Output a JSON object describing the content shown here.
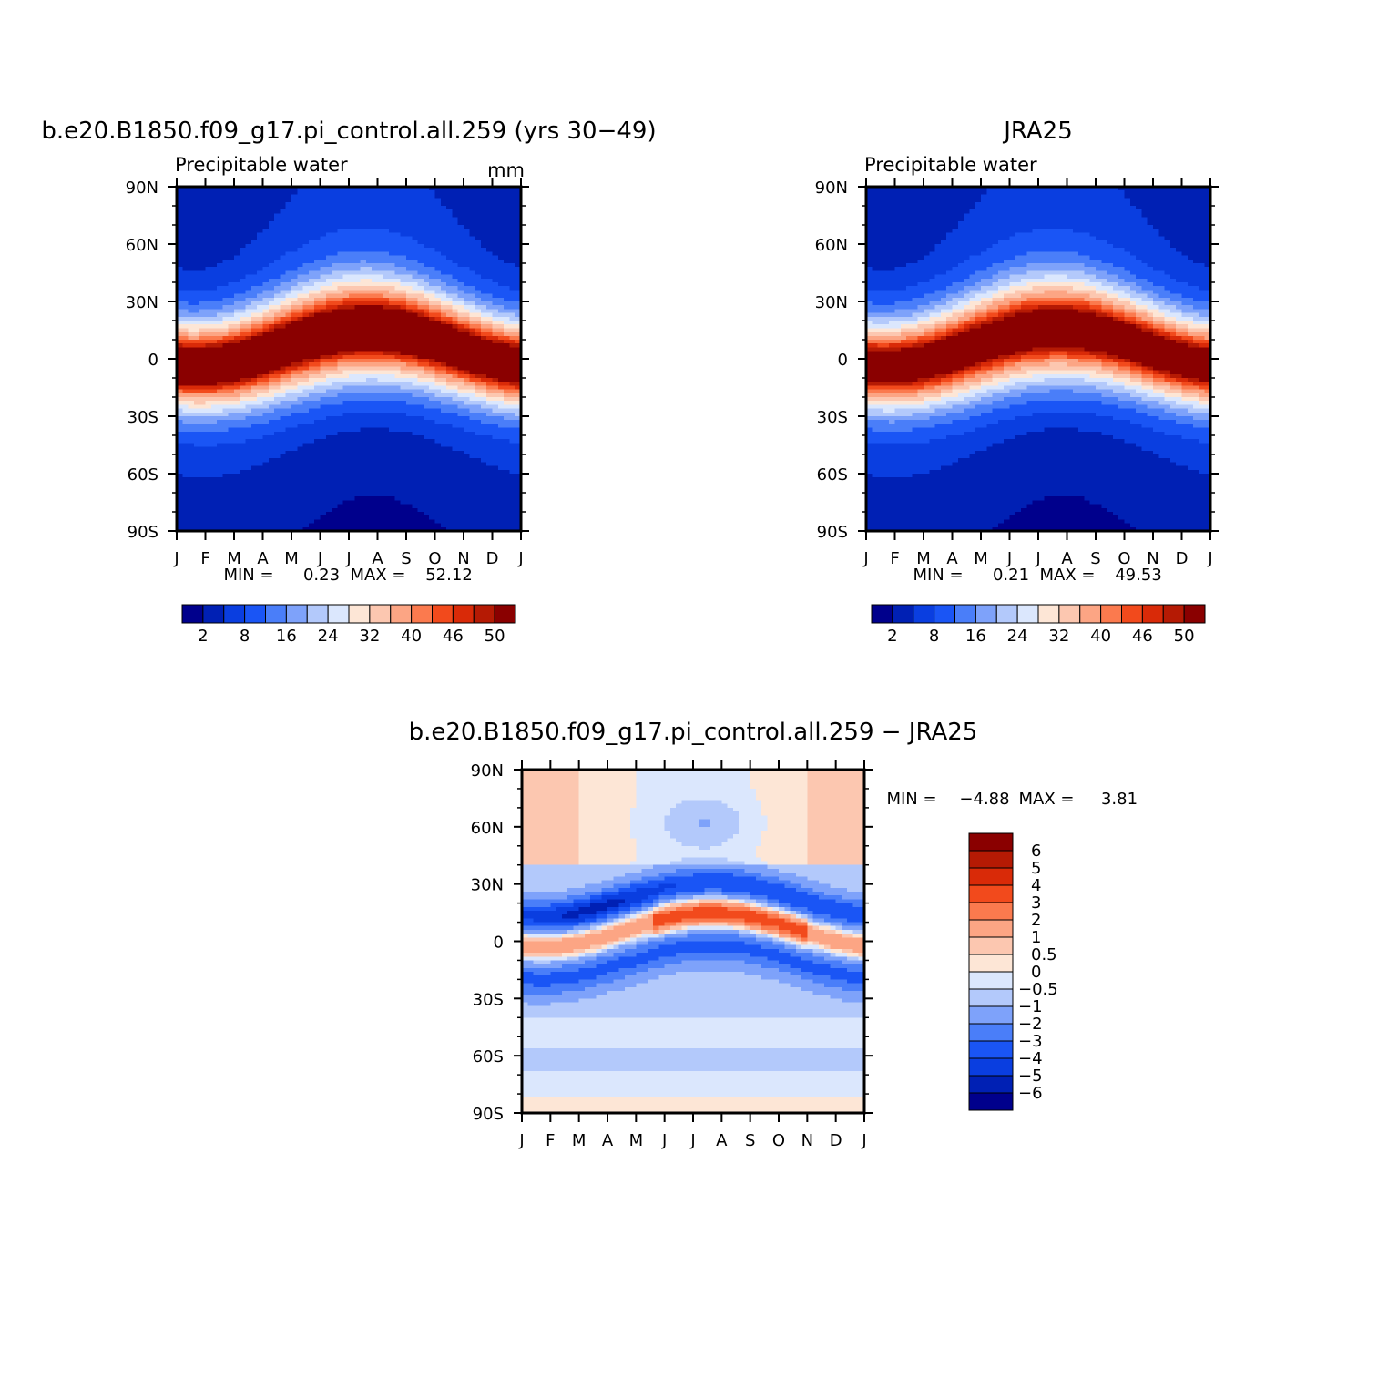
{
  "chart_data": [
    {
      "type": "heatmap",
      "title": "b.e20.B1850.f09_g17.pi_control.all.259 (yrs 30-49)",
      "subtitle": "Precipitable water",
      "units": "mm",
      "x_tick_labels": [
        "J",
        "F",
        "M",
        "A",
        "M",
        "J",
        "J",
        "A",
        "S",
        "O",
        "N",
        "D",
        "J"
      ],
      "y_tick_labels": [
        "90N",
        "60N",
        "30N",
        "0",
        "30S",
        "60S",
        "90S"
      ],
      "y_values": [
        90,
        60,
        30,
        0,
        -30,
        -60,
        -90
      ],
      "stats": {
        "min_label": "MIN =",
        "min": "0.23",
        "max_label": "MAX =",
        "max": "52.12"
      },
      "colorbar": {
        "levels": [
          2,
          5,
          8,
          12,
          16,
          20,
          24,
          28,
          32,
          36,
          40,
          43,
          46,
          48,
          50
        ],
        "tick_labels": [
          "2",
          "8",
          "16",
          "24",
          "32",
          "40",
          "46",
          "50"
        ],
        "colors": [
          "#00008c",
          "#0020b4",
          "#0a3ee0",
          "#1a55f5",
          "#4a7ef9",
          "#7ea2fa",
          "#b3c9fb",
          "#dbe7fd",
          "#fde6d6",
          "#fcc7b0",
          "#fca584",
          "#fb7a4e",
          "#f24a1c",
          "#d92a08",
          "#b51a04",
          "#8a0000"
        ]
      },
      "field_model": {
        "kind": "precipitable_water",
        "amplitude": 50.4,
        "itcz_shift": 0
      }
    },
    {
      "type": "heatmap",
      "title": "JRA25",
      "subtitle": "Precipitable water",
      "x_tick_labels": [
        "J",
        "F",
        "M",
        "A",
        "M",
        "J",
        "J",
        "A",
        "S",
        "O",
        "N",
        "D",
        "J"
      ],
      "y_tick_labels": [
        "90N",
        "60N",
        "30N",
        "0",
        "30S",
        "60S",
        "90S"
      ],
      "y_values": [
        90,
        60,
        30,
        0,
        -30,
        -60,
        -90
      ],
      "stats": {
        "min_label": "MIN =",
        "min": "0.21",
        "max_label": "MAX =",
        "max": "49.53"
      },
      "colorbar": {
        "levels": [
          2,
          5,
          8,
          12,
          16,
          20,
          24,
          28,
          32,
          36,
          40,
          43,
          46,
          48,
          50
        ],
        "tick_labels": [
          "2",
          "8",
          "16",
          "24",
          "32",
          "40",
          "46",
          "50"
        ],
        "colors": [
          "#00008c",
          "#0020b4",
          "#0a3ee0",
          "#1a55f5",
          "#4a7ef9",
          "#7ea2fa",
          "#b3c9fb",
          "#dbe7fd",
          "#fde6d6",
          "#fcc7b0",
          "#fca584",
          "#fb7a4e",
          "#f24a1c",
          "#d92a08",
          "#b51a04",
          "#8a0000"
        ]
      },
      "field_model": {
        "kind": "precipitable_water",
        "amplitude": 48.2,
        "itcz_shift": 0
      }
    },
    {
      "type": "heatmap",
      "title": "b.e20.B1850.f09_g17.pi_control.all.259 - JRA25",
      "x_tick_labels": [
        "J",
        "F",
        "M",
        "A",
        "M",
        "J",
        "J",
        "A",
        "S",
        "O",
        "N",
        "D",
        "J"
      ],
      "y_tick_labels": [
        "90N",
        "60N",
        "30N",
        "0",
        "30S",
        "60S",
        "90S"
      ],
      "y_values": [
        90,
        60,
        30,
        0,
        -30,
        -60,
        -90
      ],
      "stats": {
        "min_label": "MIN =",
        "min": "-4.88",
        "max_label": "MAX =",
        "max": "3.81"
      },
      "colorbar": {
        "levels": [
          -6,
          -5,
          -4,
          -3,
          -2,
          -1,
          -0.5,
          0,
          0.5,
          1,
          2,
          3,
          4,
          5,
          6
        ],
        "tick_labels": [
          "-6",
          "-5",
          "-4",
          "-3",
          "-2",
          "-1",
          "-0.5",
          "0",
          "0.5",
          "1",
          "2",
          "3",
          "4",
          "5",
          "6"
        ],
        "colors": [
          "#00008c",
          "#0020b4",
          "#0a3ee0",
          "#1a55f5",
          "#4a7ef9",
          "#7ea2fa",
          "#b3c9fb",
          "#dbe7fd",
          "#fde6d6",
          "#fcc7b0",
          "#fca584",
          "#fb7a4e",
          "#f24a1c",
          "#d92a08",
          "#b51a04",
          "#8a0000"
        ]
      },
      "field_model": {
        "kind": "difference"
      }
    }
  ]
}
